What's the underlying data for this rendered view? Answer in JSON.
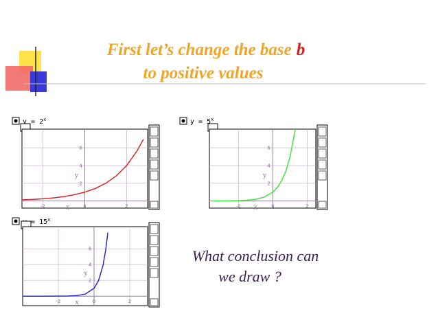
{
  "title": {
    "line1": "First let’s change the base",
    "emphasis": "b",
    "line2": "to positive values"
  },
  "conclusion": {
    "line1": "What conclusion can",
    "line2": "we draw ?"
  },
  "graphs": [
    {
      "label": "y = 2",
      "exponent": "x",
      "color": "#d42a2a",
      "xlim": [
        -3,
        3
      ],
      "ylim": [
        -0.8,
        8.1
      ],
      "xticks": [
        -2,
        0,
        2
      ],
      "yticks": [
        2,
        4,
        6
      ],
      "xlabel": "x",
      "ylabel": "y",
      "x": [
        -3,
        -2.5,
        -2,
        -1.5,
        -1,
        -0.5,
        0,
        0.5,
        1,
        1.5,
        2,
        2.5,
        2.8
      ],
      "y": [
        0.13,
        0.18,
        0.25,
        0.35,
        0.5,
        0.71,
        1,
        1.41,
        2,
        2.83,
        4,
        5.66,
        6.96
      ]
    },
    {
      "label": "y = 5",
      "exponent": "x",
      "color": "#3ee83e",
      "xlim": [
        -3.7,
        2.5
      ],
      "ylim": [
        -0.8,
        8.1
      ],
      "xticks": [
        -2,
        0,
        2
      ],
      "yticks": [
        2,
        4,
        6
      ],
      "xlabel": "x",
      "ylabel": "y",
      "x": [
        -3.5,
        -3,
        -2.5,
        -2,
        -1.5,
        -1,
        -0.5,
        0,
        0.25,
        0.5,
        0.75,
        1,
        1.25,
        1.3
      ],
      "y": [
        0.004,
        0.008,
        0.018,
        0.04,
        0.09,
        0.2,
        0.45,
        1,
        1.5,
        2.24,
        3.34,
        5,
        7.48,
        8.1
      ]
    },
    {
      "label": "y = 15",
      "exponent": "x",
      "color": "#2a2ad0",
      "xlim": [
        -4,
        3
      ],
      "ylim": [
        -1.2,
        8.8
      ],
      "xticks": [
        -2,
        0,
        2
      ],
      "yticks": [
        2,
        4,
        6
      ],
      "xlabel": "x",
      "ylabel": "y",
      "x": [
        -4,
        -3,
        -2,
        -1.5,
        -1,
        -0.5,
        0,
        0.25,
        0.5,
        0.65,
        0.77
      ],
      "y": [
        0,
        0.0003,
        0.004,
        0.017,
        0.067,
        0.26,
        1,
        1.97,
        3.87,
        5.81,
        8.04
      ]
    }
  ]
}
